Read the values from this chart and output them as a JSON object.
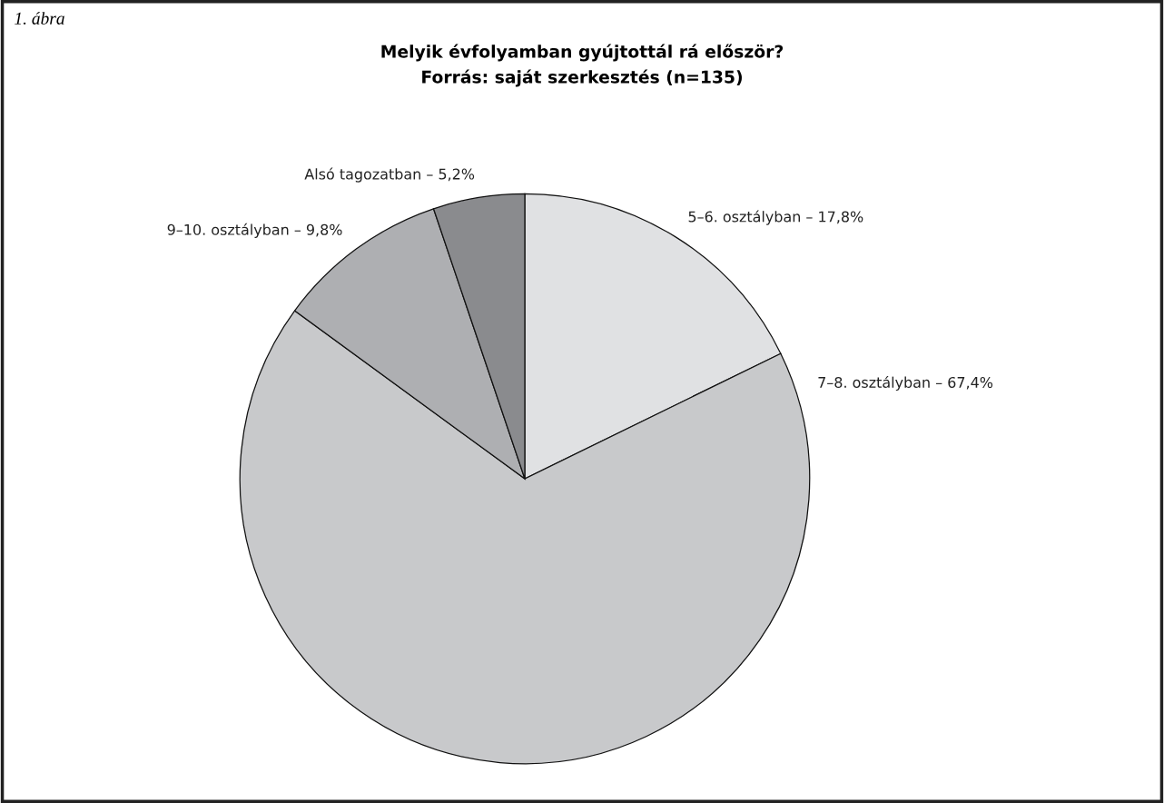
{
  "chart_data": {
    "type": "pie",
    "title": "Melyik évfolyamban gyújtottál rá először?\nForrás: saját szerkesztés (n=135)",
    "annotations": [
      "1. ábra"
    ],
    "categories": [
      "5–6. osztályban – 17,8%",
      "7–8. osztályban – 67,4%",
      "9–10. osztályban – 9,8%",
      "Alsó tagozatban – 5,2%"
    ],
    "values": [
      17.8,
      67.4,
      9.8,
      5.2
    ],
    "colors": [
      "#e0e1e3",
      "#c8c9cb",
      "#aeafb2",
      "#8a8b8e"
    ],
    "legend": false
  }
}
